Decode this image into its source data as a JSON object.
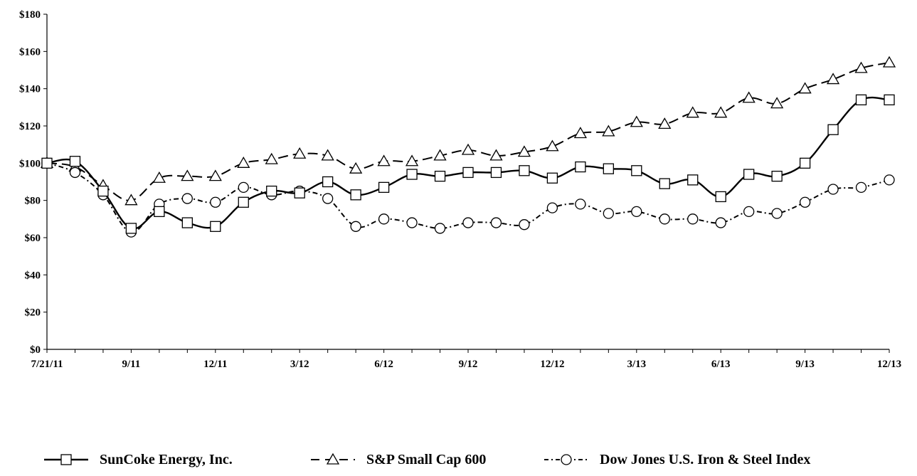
{
  "chart_data": {
    "type": "line",
    "title": "",
    "xlabel": "",
    "ylabel": "",
    "ylim": [
      0,
      180
    ],
    "y_ticks": [
      0,
      20,
      40,
      60,
      80,
      100,
      120,
      140,
      160,
      180
    ],
    "y_tick_labels": [
      "$0",
      "$20",
      "$40",
      "$60",
      "$80",
      "$100",
      "$120",
      "$140",
      "$160",
      "$180"
    ],
    "x_tick_labels": [
      {
        "index": 0,
        "label": "7/21/11"
      },
      {
        "index": 3,
        "label": "9/11"
      },
      {
        "index": 6,
        "label": "12/11"
      },
      {
        "index": 9,
        "label": "3/12"
      },
      {
        "index": 12,
        "label": "6/12"
      },
      {
        "index": 15,
        "label": "9/12"
      },
      {
        "index": 18,
        "label": "12/12"
      },
      {
        "index": 21,
        "label": "3/13"
      },
      {
        "index": 24,
        "label": "6/13"
      },
      {
        "index": 27,
        "label": "9/13"
      },
      {
        "index": 30,
        "label": "12/13"
      }
    ],
    "grid": false,
    "legend_position": "bottom",
    "series": [
      {
        "name": "SunCoke Energy, Inc.",
        "marker": "square",
        "line_style": "solid",
        "values": [
          100,
          101,
          85,
          65,
          74,
          68,
          66,
          79,
          85,
          84,
          90,
          83,
          87,
          94,
          93,
          95,
          95,
          96,
          92,
          98,
          97,
          96,
          89,
          91,
          82,
          94,
          93,
          100,
          118,
          134,
          134
        ]
      },
      {
        "name": "S&P Small Cap 600",
        "marker": "triangle",
        "line_style": "dashed",
        "values": [
          100,
          98,
          88,
          80,
          92,
          93,
          93,
          100,
          102,
          105,
          104,
          97,
          101,
          101,
          104,
          107,
          104,
          106,
          109,
          116,
          117,
          122,
          121,
          127,
          127,
          135,
          132,
          140,
          145,
          151,
          154
        ]
      },
      {
        "name": "Dow Jones U.S. Iron & Steel Index",
        "marker": "circle",
        "line_style": "dash-dot",
        "values": [
          100,
          95,
          83,
          63,
          78,
          81,
          79,
          87,
          83,
          85,
          81,
          66,
          70,
          68,
          65,
          68,
          68,
          67,
          76,
          78,
          73,
          74,
          70,
          70,
          68,
          74,
          73,
          79,
          86,
          87,
          91
        ]
      }
    ]
  }
}
